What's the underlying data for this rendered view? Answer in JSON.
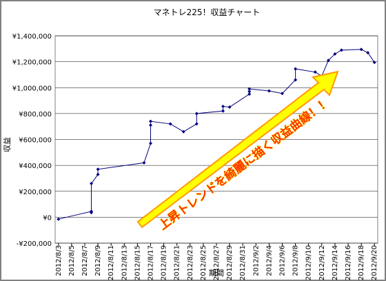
{
  "chart_data": {
    "type": "line",
    "title": "マネトレ225！収益チャート",
    "x_label": "期間",
    "y_label": "収益",
    "annotation": "上昇トレンドを綺麗に描く収益曲線！！",
    "xlim": [
      "2012/8/3",
      "2012/9/20"
    ],
    "xticks": [
      "2012/8/3",
      "2012/8/5",
      "2012/8/7",
      "2012/8/9",
      "2012/8/11",
      "2012/8/13",
      "2012/8/15",
      "2012/8/17",
      "2012/8/19",
      "2012/8/21",
      "2012/8/23",
      "2012/8/25",
      "2012/8/27",
      "2012/8/29",
      "2012/8/31",
      "2012/9/2",
      "2012/9/4",
      "2012/9/6",
      "2012/9/8",
      "2012/9/10",
      "2012/9/12",
      "2012/9/14",
      "2012/9/16",
      "2012/9/18",
      "2012/9/20"
    ],
    "ylim": [
      -200000,
      1400000
    ],
    "yticks": [
      {
        "value": -200000,
        "label": "-¥200,000"
      },
      {
        "value": 0,
        "label": "¥0"
      },
      {
        "value": 200000,
        "label": "¥200,000"
      },
      {
        "value": 400000,
        "label": "¥400,000"
      },
      {
        "value": 600000,
        "label": "¥600,000"
      },
      {
        "value": 800000,
        "label": "¥800,000"
      },
      {
        "value": 1000000,
        "label": "¥1,000,000"
      },
      {
        "value": 1200000,
        "label": "¥1,200,000"
      },
      {
        "value": 1400000,
        "label": "¥1,400,000"
      }
    ],
    "grid": true,
    "x": [
      "2012/8/3",
      "2012/8/8",
      "2012/8/8",
      "2012/8/8",
      "2012/8/9",
      "2012/8/9",
      "2012/8/16",
      "2012/8/17",
      "2012/8/17",
      "2012/8/17",
      "2012/8/20",
      "2012/8/22",
      "2012/8/24",
      "2012/8/24",
      "2012/8/28",
      "2012/8/28",
      "2012/8/29",
      "2012/9/1",
      "2012/9/1",
      "2012/9/1",
      "2012/9/4",
      "2012/9/6",
      "2012/9/8",
      "2012/9/8",
      "2012/9/11",
      "2012/9/12",
      "2012/9/13",
      "2012/9/14",
      "2012/9/15",
      "2012/9/18",
      "2012/9/19",
      "2012/9/20"
    ],
    "series": [
      {
        "color": "#000080",
        "values": [
          -15000,
          45000,
          35000,
          260000,
          330000,
          370000,
          420000,
          570000,
          710000,
          740000,
          720000,
          660000,
          720000,
          800000,
          820000,
          855000,
          850000,
          950000,
          970000,
          990000,
          975000,
          955000,
          1060000,
          1145000,
          1120000,
          1090000,
          1210000,
          1260000,
          1290000,
          1295000,
          1270000,
          1195000
        ]
      }
    ]
  }
}
